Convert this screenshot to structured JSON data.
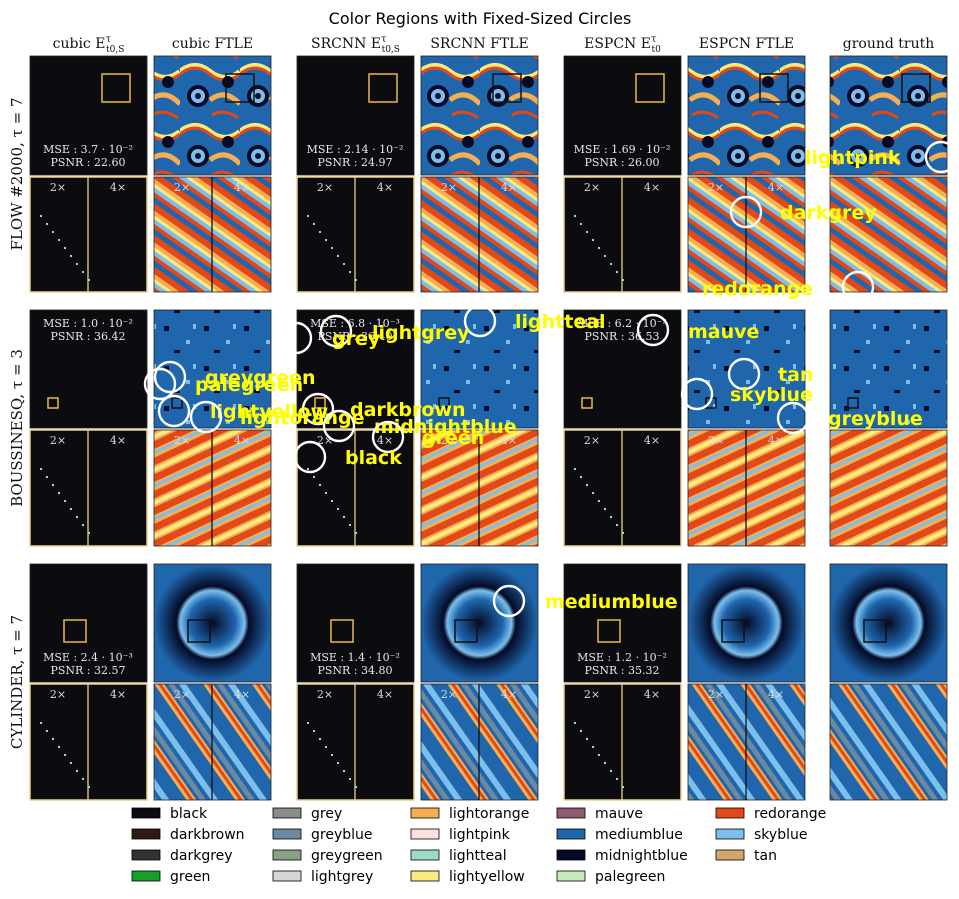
{
  "figure": {
    "title": "Color Regions with Fixed-Sized Circles"
  },
  "chart_data": {
    "type": "other",
    "title": "Color Regions with Fixed-Sized Circles",
    "column_headers": [
      "cubic E̅τt0,S",
      "cubic FTLE",
      "SRCNN E̅τt0,S",
      "SRCNN FTLE",
      "ESPCN E̅τt0",
      "ESPCN FTLE",
      "ground truth"
    ],
    "column_header_parts": [
      {
        "base": "cubic E",
        "sup": "τ",
        "sub": "t0,S",
        "bar": false
      },
      {
        "base": "cubic FTLE"
      },
      {
        "base": "SRCNN E",
        "sup": "τ",
        "sub": "t0,S",
        "bar": true
      },
      {
        "base": "SRCNN FTLE"
      },
      {
        "base": "ESPCN E",
        "sup": "τ",
        "sub": "t0",
        "bar": true
      },
      {
        "base": "ESPCN FTLE"
      },
      {
        "base": "ground truth"
      }
    ],
    "row_labels": [
      "FLOW #2000, τ = 7",
      "BOUSSINESQ, τ = 3",
      "CYLINDER, τ = 7"
    ],
    "zoom_labels": [
      "2×",
      "4×"
    ],
    "metrics": [
      [
        {
          "mse": "MSE : 3.7 · 10⁻²",
          "psnr": "PSNR : 22.60"
        },
        {
          "mse": "MSE : 2.14 · 10⁻²",
          "psnr": "PSNR : 24.97"
        },
        {
          "mse": "MSE : 1.69 · 10⁻²",
          "psnr": "PSNR : 26.00"
        }
      ],
      [
        {
          "mse": "MSE : 1.0 · 10⁻²",
          "psnr": "PSNR : 36.42"
        },
        {
          "mse": "MSE : 6.8 · 10⁻³",
          "psnr": "PSNR : 36.40"
        },
        {
          "mse": "MSE : 6.2 · 10⁻³",
          "psnr": "PSNR : 36.53"
        }
      ],
      [
        {
          "mse": "MSE : 2.4 · 10⁻³",
          "psnr": "PSNR : 32.57"
        },
        {
          "mse": "MSE : 1.4 · 10⁻²",
          "psnr": "PSNR : 34.80"
        },
        {
          "mse": "MSE : 1.2 · 10⁻²",
          "psnr": "PSNR : 35.32"
        }
      ]
    ],
    "annotations": [
      "lightpink",
      "darkgrey",
      "redorange",
      "lightteal",
      "lightgrey",
      "grey",
      "mauve",
      "greygreen",
      "palegreen",
      "tan",
      "skyblue",
      "darkbrown",
      "lightyellow",
      "lightorange",
      "midnightblue",
      "green",
      "black",
      "greyblue",
      "mediumblue"
    ],
    "legend": [
      {
        "name": "black",
        "color": "#0c0b10"
      },
      {
        "name": "darkbrown",
        "color": "#2e1a12"
      },
      {
        "name": "darkgrey",
        "color": "#303331"
      },
      {
        "name": "green",
        "color": "#16a02a"
      },
      {
        "name": "grey",
        "color": "#8a8e8a"
      },
      {
        "name": "greyblue",
        "color": "#6b8aa1"
      },
      {
        "name": "greygreen",
        "color": "#88a384"
      },
      {
        "name": "lightgrey",
        "color": "#d4d7d2"
      },
      {
        "name": "lightorange",
        "color": "#f6ae52"
      },
      {
        "name": "lightpink",
        "color": "#fce0de"
      },
      {
        "name": "lightteal",
        "color": "#9cdcc6"
      },
      {
        "name": "lightyellow",
        "color": "#f9eb7e"
      },
      {
        "name": "mauve",
        "color": "#8c5c6e"
      },
      {
        "name": "mediumblue",
        "color": "#1f66ad"
      },
      {
        "name": "midnightblue",
        "color": "#050a26"
      },
      {
        "name": "palegreen",
        "color": "#c4ebb8"
      },
      {
        "name": "redorange",
        "color": "#e34818"
      },
      {
        "name": "skyblue",
        "color": "#7cbfec"
      },
      {
        "name": "tan",
        "color": "#d2a56c"
      }
    ]
  }
}
